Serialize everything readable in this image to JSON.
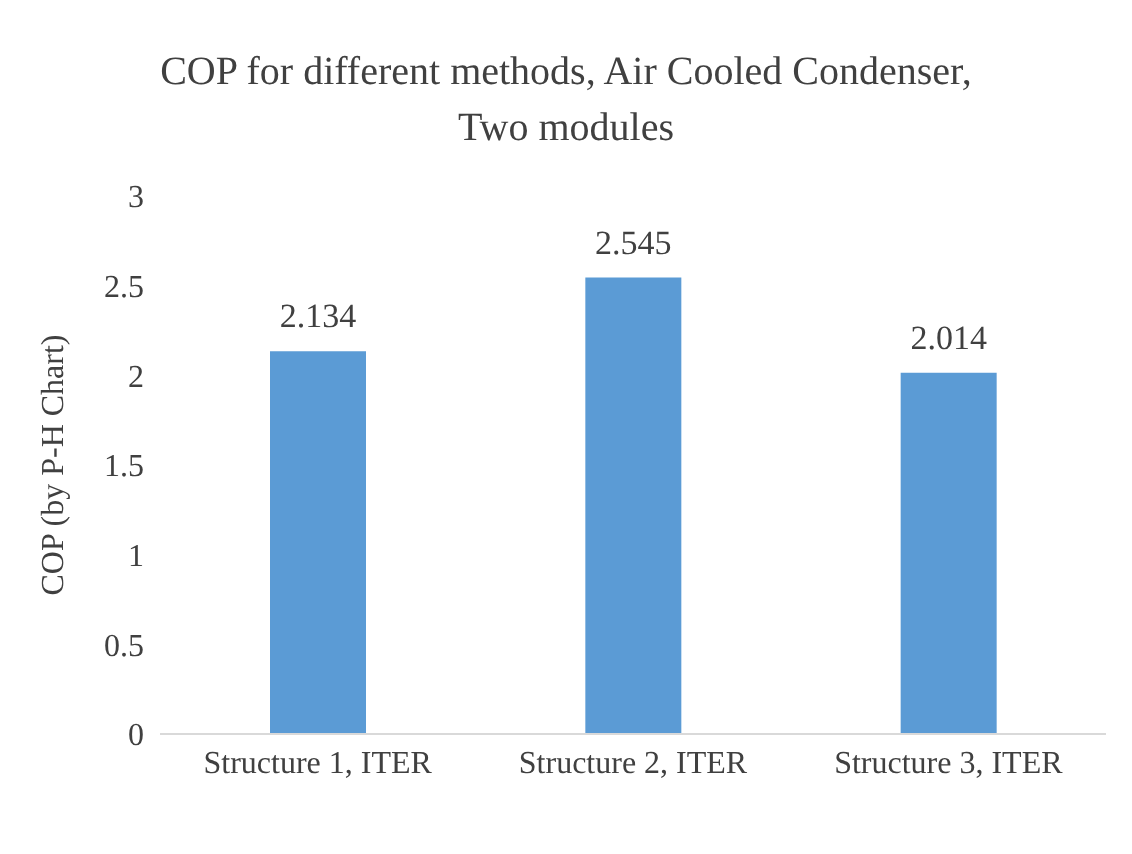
{
  "chart_data": {
    "type": "bar",
    "title": "COP for different methods, Air Cooled Condenser, Two modules",
    "ylabel": "COP (by P-H Chart)",
    "categories": [
      "Structure 1,  ITER",
      "Structure 2,  ITER",
      "Structure 3,  ITER"
    ],
    "values": [
      2.134,
      2.545,
      2.014
    ],
    "color": "#5b9bd5",
    "ylim": [
      0,
      3
    ],
    "yticks": [
      0,
      0.5,
      1,
      1.5,
      2,
      2.5,
      3
    ],
    "data_labels": true
  }
}
